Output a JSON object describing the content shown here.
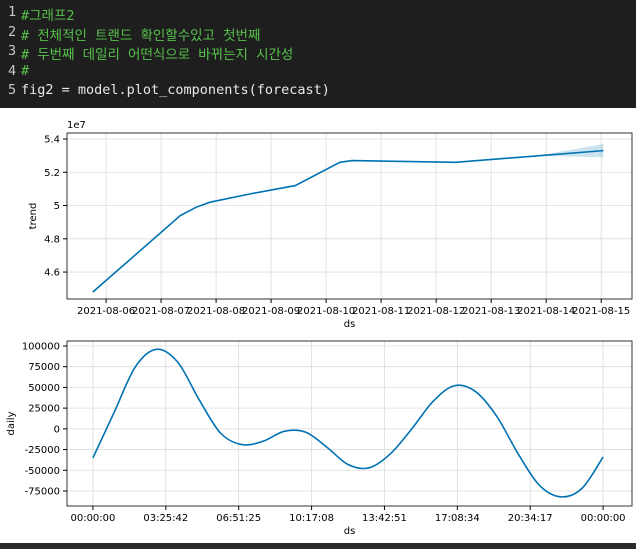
{
  "code": {
    "lines": [
      {
        "n": 1,
        "text": "#그래프2",
        "kind": "comment"
      },
      {
        "n": 2,
        "text": "# 전체적인 트랜드 확인할수있고 첫번째",
        "kind": "comment"
      },
      {
        "n": 3,
        "text": "# 두번째 데일리 어떤식으로 바뀌는지 시간성",
        "kind": "comment"
      },
      {
        "n": 4,
        "text": "#",
        "kind": "comment"
      },
      {
        "n": 5,
        "text": "fig2 = model.plot_components(forecast)",
        "kind": "code"
      }
    ]
  },
  "chart_data": [
    {
      "type": "line",
      "xlabel": "ds",
      "ylabel": "trend",
      "y_offset_label": "1e7",
      "grid": true,
      "xlim": [
        5.29,
        15.56
      ],
      "ylim": [
        4.438,
        5.436
      ],
      "xticks": [
        {
          "value": 6,
          "label": "2021-08-06"
        },
        {
          "value": 7,
          "label": "2021-08-07"
        },
        {
          "value": 8,
          "label": "2021-08-08"
        },
        {
          "value": 9,
          "label": "2021-08-09"
        },
        {
          "value": 10,
          "label": "2021-08-10"
        },
        {
          "value": 11,
          "label": "2021-08-11"
        },
        {
          "value": 12,
          "label": "2021-08-12"
        },
        {
          "value": 13,
          "label": "2021-08-13"
        },
        {
          "value": 14,
          "label": "2021-08-14"
        },
        {
          "value": 15,
          "label": "2021-08-15"
        }
      ],
      "yticks": [
        4.6,
        4.8,
        5.0,
        5.2,
        5.4
      ],
      "x": [
        5.76,
        7.35,
        7.64,
        7.89,
        8.62,
        9.44,
        10.25,
        10.47,
        12.35,
        15.04
      ],
      "series": [
        {
          "color": "#0072b2",
          "values": [
            4.48,
            4.94,
            4.99,
            5.02,
            5.07,
            5.12,
            5.26,
            5.27,
            5.26,
            5.33
          ]
        }
      ],
      "band": {
        "color": "#0072b2",
        "x": [
          13.0,
          14.0,
          15.04
        ],
        "lower": [
          5.277,
          5.297,
          5.29
        ],
        "upper": [
          5.277,
          5.309,
          5.37
        ]
      }
    },
    {
      "type": "line",
      "xlabel": "ds",
      "ylabel": "daily",
      "grid": true,
      "xlim": [
        -1.22,
        25.36
      ],
      "ylim": [
        -93100,
        106000
      ],
      "xticks": [
        {
          "value": 0,
          "label": "00:00:00"
        },
        {
          "value": 3.4286,
          "label": "03:25:42"
        },
        {
          "value": 6.8571,
          "label": "06:51:25"
        },
        {
          "value": 10.2857,
          "label": "10:17:08"
        },
        {
          "value": 13.7143,
          "label": "13:42:51"
        },
        {
          "value": 17.1429,
          "label": "17:08:34"
        },
        {
          "value": 20.5714,
          "label": "20:34:17"
        },
        {
          "value": 24,
          "label": "00:00:00"
        }
      ],
      "yticks": [
        100000,
        75000,
        50000,
        25000,
        0,
        -25000,
        -50000,
        -75000
      ],
      "x": [
        0,
        1,
        2,
        3,
        4,
        5,
        6,
        7,
        8,
        9,
        10,
        11,
        12,
        13,
        14,
        15,
        16,
        17,
        18,
        19,
        20,
        21,
        22,
        23,
        24
      ],
      "series": [
        {
          "color": "#0072b2",
          "values": [
            -35000,
            20000,
            75000,
            96000,
            80000,
            35000,
            -5000,
            -19000,
            -15000,
            -3000,
            -4000,
            -22000,
            -43000,
            -47000,
            -30000,
            0,
            33000,
            52000,
            45000,
            15000,
            -30000,
            -68000,
            -82000,
            -72000,
            -34000
          ]
        }
      ]
    }
  ]
}
